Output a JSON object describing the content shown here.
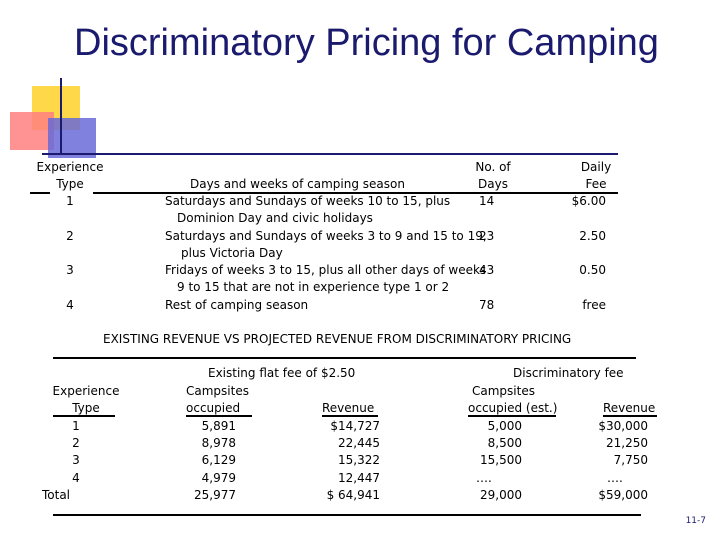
{
  "title": "Discriminatory Pricing for Camping",
  "table1": {
    "headers": {
      "type_line1": "Experience",
      "type_line2": "Type",
      "season": "Days and weeks of camping season",
      "days_line1": "No. of",
      "days_line2": "Days",
      "fee_line1": "Daily",
      "fee_line2": "Fee"
    },
    "rows": [
      {
        "type": "1",
        "season1": "Saturdays and Sundays of weeks 10 to 15, plus",
        "season2": "Dominion Day and civic holidays",
        "days": "14",
        "fee": "$6.00"
      },
      {
        "type": "2",
        "season1": "Saturdays and Sundays of weeks 3 to 9 and 15 to 19,",
        "season2": "plus Victoria Day",
        "days": "23",
        "fee": "2.50"
      },
      {
        "type": "3",
        "season1": "Fridays of weeks 3 to 15, plus all other days of weeks",
        "season2": "9 to 15 that are not in experience type 1 or 2",
        "days": "43",
        "fee": "0.50"
      },
      {
        "type": "4",
        "season1": "Rest of camping season",
        "season2": "",
        "days": "78",
        "fee": "free"
      }
    ]
  },
  "table2": {
    "title": "EXISTING  REVENUE  VS  PROJECTED  REVENUE  FROM  DISCRIMINATORY  PRICING",
    "group_existing": "Existing  flat fee of $2.50",
    "group_discrim": "Discriminatory  fee",
    "headers": {
      "type_line1": "Experience",
      "type_line2": "Type",
      "campsites_line1": "Campsites",
      "campsites_line2": "occupied",
      "revenue": "Revenue",
      "dcampsites_line1": "Campsites",
      "dcampsites_line2": "occupied (est.)",
      "drevenue": "Revenue"
    },
    "rows": [
      {
        "type": "1",
        "occ": "5,891",
        "rev": "$14,727",
        "docc": "5,000",
        "drev": "$30,000"
      },
      {
        "type": "2",
        "occ": "8,978",
        "rev": "22,445",
        "docc": "8,500",
        "drev": "21,250"
      },
      {
        "type": "3",
        "occ": "6,129",
        "rev": "15,322",
        "docc": "15,500",
        "drev": "7,750"
      },
      {
        "type": "4",
        "occ": "4,979",
        "rev": "12,447",
        "docc": "….",
        "drev": "…."
      },
      {
        "type": "Total",
        "occ": "25,977",
        "rev": "$ 64,941",
        "docc": "29,000",
        "drev": "$59,000"
      }
    ]
  },
  "slide_number": "11-7"
}
